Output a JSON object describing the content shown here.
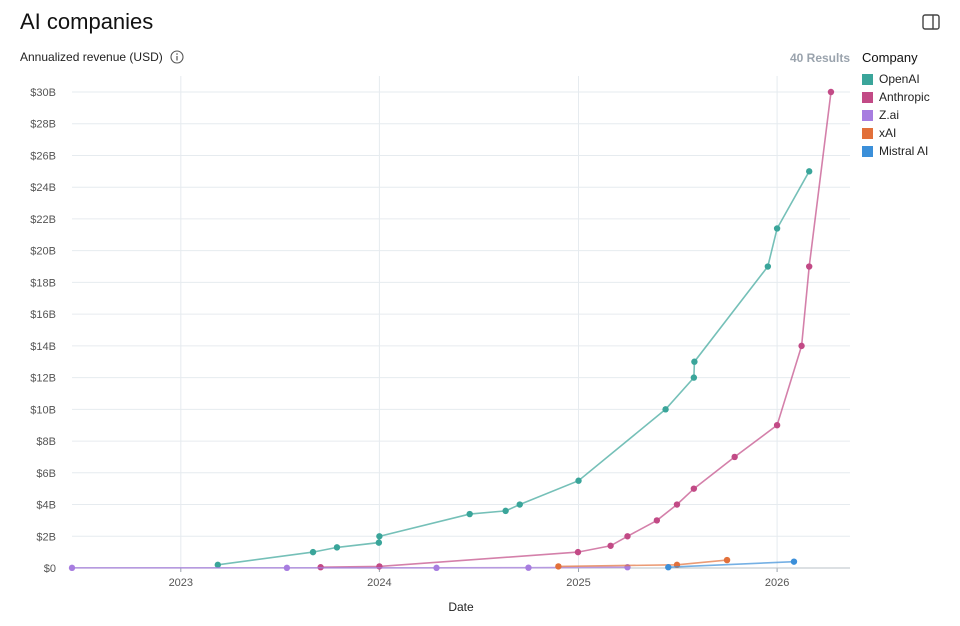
{
  "header": {
    "title": "AI companies",
    "metric_label": "Annualized revenue (USD)",
    "results": "40 Results"
  },
  "icons": {
    "panel": "sidebar-panel-icon",
    "info": "info-icon"
  },
  "legend": {
    "title": "Company",
    "placement": "right"
  },
  "chart_data": {
    "type": "line",
    "xlabel": "Date",
    "ylabel": "",
    "x_range": [
      "2022-06-15",
      "2026-05-15"
    ],
    "ylim": [
      0,
      30
    ],
    "y_ticks": [
      0,
      2,
      4,
      6,
      8,
      10,
      12,
      14,
      16,
      18,
      20,
      22,
      24,
      26,
      28,
      30
    ],
    "y_tick_labels": [
      "$0",
      "$2B",
      "$4B",
      "$6B",
      "$8B",
      "$10B",
      "$12B",
      "$14B",
      "$16B",
      "$18B",
      "$20B",
      "$22B",
      "$24B",
      "$26B",
      "$28B",
      "$30B"
    ],
    "x_ticks": [
      "2023-01-01",
      "2024-01-01",
      "2025-01-01",
      "2026-01-01"
    ],
    "x_tick_labels": [
      "2023",
      "2024",
      "2025",
      "2026"
    ],
    "grid": true,
    "series": [
      {
        "name": "OpenAI",
        "color": "#3aa59a",
        "points": [
          [
            "2023-03-10",
            0.2
          ],
          [
            "2023-09-01",
            1.0
          ],
          [
            "2023-10-15",
            1.3
          ],
          [
            "2023-12-31",
            1.6
          ],
          [
            "2024-01-01",
            2.0
          ],
          [
            "2024-06-15",
            3.4
          ],
          [
            "2024-08-20",
            3.6
          ],
          [
            "2024-09-15",
            4.0
          ],
          [
            "2025-01-01",
            5.5
          ],
          [
            "2025-06-10",
            10.0
          ],
          [
            "2025-08-01",
            12.0
          ],
          [
            "2025-08-02",
            13.0
          ],
          [
            "2025-12-15",
            19.0
          ],
          [
            "2026-01-01",
            21.4
          ],
          [
            "2026-03-01",
            25.0
          ]
        ]
      },
      {
        "name": "Anthropic",
        "color": "#c24a86",
        "points": [
          [
            "2023-09-15",
            0.05
          ],
          [
            "2024-01-01",
            0.1
          ],
          [
            "2024-12-31",
            1.0
          ],
          [
            "2025-03-01",
            1.4
          ],
          [
            "2025-04-01",
            2.0
          ],
          [
            "2025-05-25",
            3.0
          ],
          [
            "2025-07-01",
            4.0
          ],
          [
            "2025-08-01",
            5.0
          ],
          [
            "2025-10-15",
            7.0
          ],
          [
            "2026-01-01",
            9.0
          ],
          [
            "2026-02-15",
            14.0
          ],
          [
            "2026-03-01",
            19.0
          ],
          [
            "2026-04-10",
            30.0
          ]
        ]
      },
      {
        "name": "Z.ai",
        "color": "#a77de0",
        "points": [
          [
            "2022-06-15",
            0.01
          ],
          [
            "2023-07-15",
            0.01
          ],
          [
            "2024-04-15",
            0.01
          ],
          [
            "2024-10-01",
            0.02
          ],
          [
            "2025-04-01",
            0.05
          ]
        ]
      },
      {
        "name": "xAI",
        "color": "#e2703a",
        "points": [
          [
            "2024-11-25",
            0.1
          ],
          [
            "2025-07-01",
            0.2
          ],
          [
            "2025-10-01",
            0.5
          ]
        ]
      },
      {
        "name": "Mistral AI",
        "color": "#3b8fd9",
        "points": [
          [
            "2025-06-15",
            0.05
          ],
          [
            "2026-02-01",
            0.4
          ]
        ]
      }
    ]
  }
}
